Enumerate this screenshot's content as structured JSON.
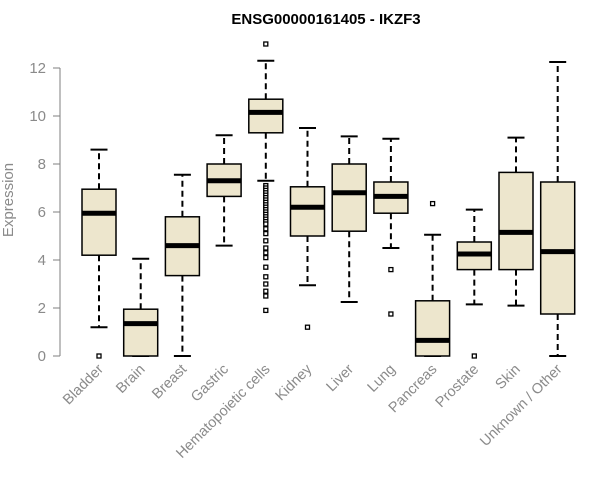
{
  "chart_data": {
    "type": "boxplot",
    "title": "ENSG00000161405 - IKZF3",
    "xlabel": "",
    "ylabel": "Expression",
    "ylim": [
      0,
      12
    ],
    "yticks": [
      0,
      2,
      4,
      6,
      8,
      10,
      12
    ],
    "grid": false,
    "legend": "none",
    "colors": {
      "box_fill": "#ede6cd",
      "stroke": "#000000",
      "axis_text": "#8a8a8a",
      "axis_line": "#7f7f7f"
    },
    "categories": [
      "Bladder",
      "Brain",
      "Breast",
      "Gastric",
      "Hematopoietic cells",
      "Kidney",
      "Liver",
      "Lung",
      "Pancreas",
      "Prostate",
      "Skin",
      "Unknown / Other"
    ],
    "boxes": [
      {
        "category": "Bladder",
        "whisker_low": 1.2,
        "q1": 4.2,
        "median": 5.95,
        "q3": 6.95,
        "whisker_high": 8.6,
        "outliers": [
          0.0
        ]
      },
      {
        "category": "Brain",
        "whisker_low": 0.0,
        "q1": 0.0,
        "median": 1.35,
        "q3": 1.95,
        "whisker_high": 4.05,
        "outliers": []
      },
      {
        "category": "Breast",
        "whisker_low": 0.0,
        "q1": 3.35,
        "median": 4.6,
        "q3": 5.8,
        "whisker_high": 7.55,
        "outliers": []
      },
      {
        "category": "Gastric",
        "whisker_low": 4.6,
        "q1": 6.65,
        "median": 7.3,
        "q3": 8.0,
        "whisker_high": 9.2,
        "outliers": []
      },
      {
        "category": "Hematopoietic cells",
        "whisker_low": 7.3,
        "q1": 9.3,
        "median": 10.15,
        "q3": 10.7,
        "whisker_high": 12.3,
        "outliers": [
          13.0,
          7.1,
          7.0,
          6.9,
          6.8,
          6.7,
          6.6,
          6.5,
          6.4,
          6.3,
          6.2,
          6.1,
          6.0,
          5.9,
          5.8,
          5.7,
          5.6,
          5.5,
          5.3,
          5.1,
          4.8,
          4.5,
          4.3,
          4.1,
          3.7,
          3.3,
          3.0,
          2.7,
          2.5,
          1.9
        ]
      },
      {
        "category": "Kidney",
        "whisker_low": 2.95,
        "q1": 5.0,
        "median": 6.2,
        "q3": 7.05,
        "whisker_high": 9.5,
        "outliers": [
          1.2
        ]
      },
      {
        "category": "Liver",
        "whisker_low": 2.25,
        "q1": 5.2,
        "median": 6.8,
        "q3": 8.0,
        "whisker_high": 9.15,
        "outliers": []
      },
      {
        "category": "Lung",
        "whisker_low": 4.5,
        "q1": 5.95,
        "median": 6.65,
        "q3": 7.25,
        "whisker_high": 9.05,
        "outliers": [
          3.6,
          1.75
        ]
      },
      {
        "category": "Pancreas",
        "whisker_low": 0.0,
        "q1": 0.0,
        "median": 0.65,
        "q3": 2.3,
        "whisker_high": 5.05,
        "outliers": [
          6.35
        ]
      },
      {
        "category": "Prostate",
        "whisker_low": 2.15,
        "q1": 3.6,
        "median": 4.25,
        "q3": 4.75,
        "whisker_high": 6.1,
        "outliers": [
          0.0
        ]
      },
      {
        "category": "Skin",
        "whisker_low": 2.1,
        "q1": 3.6,
        "median": 5.15,
        "q3": 7.65,
        "whisker_high": 9.1,
        "outliers": []
      },
      {
        "category": "Unknown / Other",
        "whisker_low": 0.0,
        "q1": 1.75,
        "median": 4.35,
        "q3": 7.25,
        "whisker_high": 12.25,
        "outliers": []
      }
    ]
  }
}
